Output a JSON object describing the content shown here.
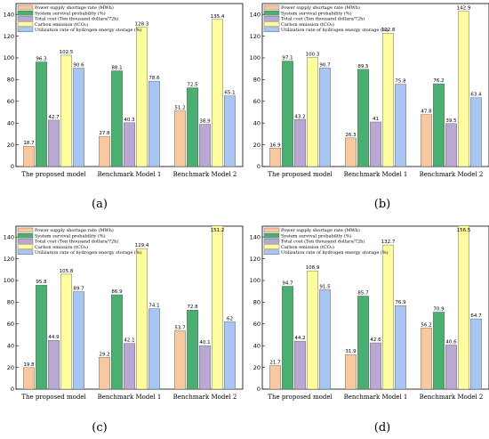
{
  "colors": [
    "#f8c9a0",
    "#4caf72",
    "#b8a8d2",
    "#fffca0",
    "#a9c6f3"
  ],
  "chart_data": [
    {
      "type": "bar",
      "panel_label": "(a)",
      "categories": [
        "The proposed model",
        "Benchmark Model 1",
        "Benchmark Model 2"
      ],
      "ylim": [
        0,
        150
      ],
      "yticks": [
        "0",
        "20",
        "40",
        "60",
        "80",
        "100",
        "120",
        "140"
      ],
      "series": [
        {
          "name": "Power supply shortage rate (MWh)",
          "values": [
            18.7,
            27.8,
            51.2
          ],
          "labels": [
            "18.7",
            "27.8",
            "51.2"
          ]
        },
        {
          "name": "System survival probability (%)",
          "values": [
            96.3,
            88.1,
            72.5
          ],
          "labels": [
            "96.3",
            "88.1",
            "72.5"
          ]
        },
        {
          "name": "Total cost (Ten thousand dollars/72h)",
          "values": [
            42.7,
            40.3,
            38.9
          ],
          "labels": [
            "42.7",
            "40.3",
            "38.9"
          ]
        },
        {
          "name": "Carbon emission (tCO₂)",
          "values": [
            102.5,
            128.3,
            135.4
          ],
          "labels": [
            "102.5",
            "128.3",
            "135.4"
          ]
        },
        {
          "name": "Utilization rate of hydrogen energy storage (%)",
          "values": [
            90.6,
            78.6,
            65.1
          ],
          "labels": [
            "90.6",
            "78.6",
            "65.1"
          ]
        }
      ]
    },
    {
      "type": "bar",
      "panel_label": "(b)",
      "categories": [
        "The proposed model",
        "Benchmark Model 1",
        "Benchmark Model 2"
      ],
      "ylim": [
        0,
        150
      ],
      "yticks": [
        "0",
        "20",
        "40",
        "60",
        "80",
        "100",
        "120",
        "140"
      ],
      "series": [
        {
          "name": "Power supply shortage rate (MWh)",
          "values": [
            16.9,
            26.3,
            47.8
          ],
          "labels": [
            "16.9",
            "26.3",
            "47.8"
          ]
        },
        {
          "name": "System survival probability (%)",
          "values": [
            97.1,
            89.5,
            76.2
          ],
          "labels": [
            "97.1",
            "89.5",
            "76.2"
          ]
        },
        {
          "name": "Total cost (Ten thousand dollars/72h)",
          "values": [
            43.2,
            41.0,
            39.5
          ],
          "labels": [
            "43.2",
            "41",
            "39.5"
          ]
        },
        {
          "name": "Carbon emission (tCO₂)",
          "values": [
            100.3,
            122.8,
            142.9
          ],
          "labels": [
            "100.3",
            "122.8",
            "142.9"
          ]
        },
        {
          "name": "Utilization rate of hydrogen energy storage (%)",
          "values": [
            90.7,
            75.8,
            63.4
          ],
          "labels": [
            "90.7",
            "75.8",
            "63.4"
          ]
        }
      ]
    },
    {
      "type": "bar",
      "panel_label": "(c)",
      "categories": [
        "The proposed model",
        "Benchmark Model 1",
        "Benchmark Model 2"
      ],
      "ylim": [
        0,
        150
      ],
      "yticks": [
        "0",
        "20",
        "40",
        "60",
        "80",
        "100",
        "120",
        "140"
      ],
      "series": [
        {
          "name": "Power supply shortage rate (MWh)",
          "values": [
            19.8,
            29.2,
            53.7
          ],
          "labels": [
            "19.8",
            "29.2",
            "53.7"
          ]
        },
        {
          "name": "System survival probability (%)",
          "values": [
            95.8,
            86.9,
            72.8
          ],
          "labels": [
            "95.8",
            "86.9",
            "72.8"
          ]
        },
        {
          "name": "Total cost (Ten thousand dollars/72h)",
          "values": [
            44.9,
            42.1,
            40.1
          ],
          "labels": [
            "44.9",
            "42.1",
            "40.1"
          ]
        },
        {
          "name": "Carbon emission (tCO₂)",
          "values": [
            105.8,
            129.4,
            151.2
          ],
          "labels": [
            "105.8",
            "129.4",
            "151.2"
          ]
        },
        {
          "name": "Utilization rate of hydrogen energy storage (%)",
          "values": [
            89.7,
            74.1,
            62.0
          ],
          "labels": [
            "89.7",
            "74.1",
            "62"
          ]
        }
      ]
    },
    {
      "type": "bar",
      "panel_label": "(d)",
      "categories": [
        "The proposed model",
        "Benchmark Model 1",
        "Benchmark Model 2"
      ],
      "ylim": [
        0,
        150
      ],
      "yticks": [
        "0",
        "20",
        "40",
        "60",
        "80",
        "100",
        "120",
        "140"
      ],
      "series": [
        {
          "name": "Power supply shortage rate (MWh)",
          "values": [
            21.7,
            31.9,
            56.2
          ],
          "labels": [
            "21.7",
            "31.9",
            "56.2"
          ]
        },
        {
          "name": "System survival probability (%)",
          "values": [
            94.7,
            85.7,
            70.9
          ],
          "labels": [
            "94.7",
            "85.7",
            "70.9"
          ]
        },
        {
          "name": "Total cost (Ten thousand dollars/72h)",
          "values": [
            44.2,
            42.6,
            40.6
          ],
          "labels": [
            "44.2",
            "42.6",
            "40.6"
          ]
        },
        {
          "name": "Carbon emission (tCO₂)",
          "values": [
            108.9,
            132.7,
            156.5
          ],
          "labels": [
            "108.9",
            "132.7",
            "156.5"
          ]
        },
        {
          "name": "Utilization rate of hydrogen energy storage (%)",
          "values": [
            91.5,
            76.9,
            64.7
          ],
          "labels": [
            "91.5",
            "76.9",
            "64.7"
          ]
        }
      ]
    }
  ]
}
